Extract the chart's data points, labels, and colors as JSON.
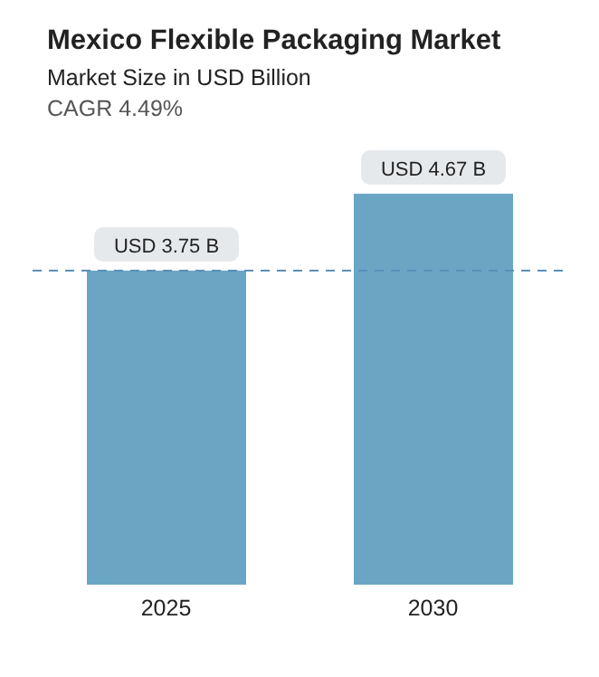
{
  "chart_data": {
    "type": "bar",
    "title": "Mexico Flexible Packaging Market",
    "subtitle": "Market Size in USD Billion",
    "annotations": [
      "CAGR 4.49%"
    ],
    "categories": [
      "2025",
      "2030"
    ],
    "values": [
      3.75,
      4.67
    ],
    "value_labels": [
      "USD 3.75 B",
      "USD 4.67 B"
    ],
    "color": "#6aa6c4",
    "ref_lines": [
      {
        "axis": "y",
        "value": 3.75,
        "color": "#5b8fb9",
        "line_style": "dashed"
      }
    ]
  }
}
